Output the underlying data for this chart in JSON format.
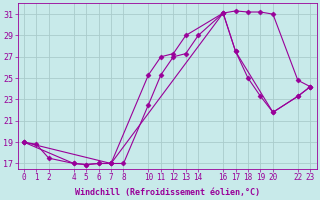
{
  "xlabel": "Windchill (Refroidissement éolien,°C)",
  "background_color": "#c8eaea",
  "line_color": "#990099",
  "grid_color": "#aacccc",
  "xlim": [
    -0.5,
    23.5
  ],
  "ylim": [
    16.5,
    32
  ],
  "yticks": [
    17,
    19,
    21,
    23,
    25,
    27,
    29,
    31
  ],
  "xticks": [
    0,
    1,
    2,
    4,
    5,
    6,
    7,
    8,
    10,
    11,
    12,
    13,
    14,
    16,
    17,
    18,
    19,
    20,
    22,
    23
  ],
  "series1_x": [
    0,
    1,
    2,
    4,
    5,
    6,
    7,
    8,
    10,
    11,
    12,
    13,
    14,
    16,
    17,
    18,
    19,
    20,
    22,
    23
  ],
  "series1_y": [
    19.0,
    18.8,
    17.5,
    17.0,
    16.9,
    17.0,
    17.0,
    17.0,
    22.5,
    25.3,
    27.0,
    27.3,
    29.0,
    31.1,
    31.3,
    31.2,
    31.2,
    31.0,
    24.8,
    24.2
  ],
  "series2_x": [
    0,
    4,
    5,
    6,
    7,
    10,
    11,
    12,
    13,
    16,
    17,
    18,
    19,
    20,
    22,
    23
  ],
  "series2_y": [
    19.0,
    17.0,
    16.9,
    17.0,
    17.0,
    25.3,
    27.0,
    27.3,
    29.0,
    31.1,
    27.5,
    25.0,
    23.3,
    21.8,
    23.3,
    24.2
  ],
  "series3_x": [
    0,
    7,
    16,
    17,
    20,
    22,
    23
  ],
  "series3_y": [
    19.0,
    17.0,
    31.1,
    27.5,
    21.8,
    23.3,
    24.2
  ],
  "marker": "D",
  "markersize": 2.5,
  "linewidth": 0.8,
  "tick_fontsize": 5.5,
  "xlabel_fontsize": 6.0
}
